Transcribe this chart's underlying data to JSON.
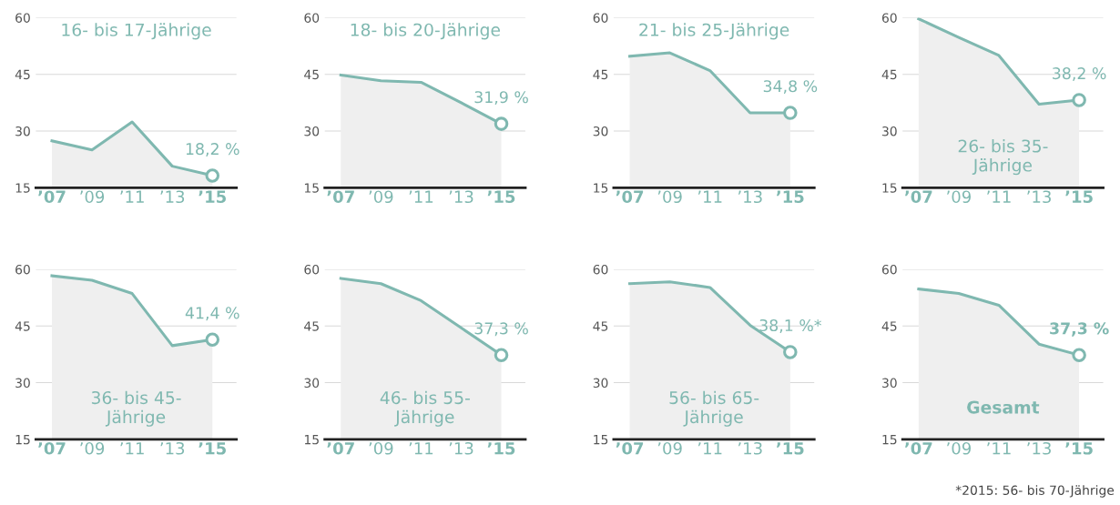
{
  "chart_data": [
    {
      "type": "area",
      "title": "16- bis 17-Jährige",
      "x": [
        2007,
        2009,
        2011,
        2013,
        2015
      ],
      "series": [
        {
          "color": "#7fb8b0",
          "values": [
            27.4,
            25,
            32.4,
            20.7,
            18.2
          ],
          "value_labels": [
            null,
            null,
            null,
            null,
            "18,2 %"
          ]
        }
      ],
      "xlim": [
        2006.2,
        2016.2
      ],
      "xticks": [
        {
          "value": 2007,
          "label": "’07"
        },
        {
          "value": 2009,
          "label": "’09"
        },
        {
          "value": 2011,
          "label": "’11"
        },
        {
          "value": 2013,
          "label": "’13"
        },
        {
          "value": 2015,
          "label": "’15"
        }
      ],
      "ylim": [
        15,
        60
      ],
      "yticks": [
        15,
        30,
        45,
        60
      ],
      "grid": "y"
    },
    {
      "type": "area",
      "title": "18- bis 20-Jährige",
      "x": [
        2007,
        2009,
        2011,
        2013,
        2015
      ],
      "series": [
        {
          "color": "#7fb8b0",
          "values": [
            44.8,
            43.3,
            42.9,
            37.5,
            31.9
          ],
          "value_labels": [
            null,
            null,
            null,
            null,
            "31,9 %"
          ]
        }
      ],
      "xlim": [
        2006.2,
        2016.2
      ],
      "xticks": [
        {
          "value": 2007,
          "label": "’07"
        },
        {
          "value": 2009,
          "label": "’09"
        },
        {
          "value": 2011,
          "label": "’11"
        },
        {
          "value": 2013,
          "label": "’13"
        },
        {
          "value": 2015,
          "label": "’15"
        }
      ],
      "ylim": [
        15,
        60
      ],
      "yticks": [
        15,
        30,
        45,
        60
      ],
      "grid": "y"
    },
    {
      "type": "area",
      "title": "21- bis 25-Jährige",
      "x": [
        2007,
        2009,
        2011,
        2013,
        2015
      ],
      "series": [
        {
          "color": "#7fb8b0",
          "values": [
            49.8,
            50.7,
            46,
            34.8,
            34.8
          ],
          "value_labels": [
            null,
            null,
            null,
            null,
            "34,8 %"
          ]
        }
      ],
      "xlim": [
        2006.2,
        2016.2
      ],
      "xticks": [
        {
          "value": 2007,
          "label": "’07"
        },
        {
          "value": 2009,
          "label": "’09"
        },
        {
          "value": 2011,
          "label": "’11"
        },
        {
          "value": 2013,
          "label": "’13"
        },
        {
          "value": 2015,
          "label": "’15"
        }
      ],
      "ylim": [
        15,
        60
      ],
      "yticks": [
        15,
        30,
        45,
        60
      ],
      "grid": "y"
    },
    {
      "type": "area",
      "title": "26- bis 35-\nJährige",
      "x": [
        2007,
        2009,
        2011,
        2013,
        2015
      ],
      "series": [
        {
          "color": "#7fb8b0",
          "values": [
            59.7,
            54.8,
            50,
            37.1,
            38.2
          ],
          "value_labels": [
            null,
            null,
            null,
            null,
            "38,2 %"
          ]
        }
      ],
      "xlim": [
        2006.2,
        2016.2
      ],
      "xticks": [
        {
          "value": 2007,
          "label": "’07"
        },
        {
          "value": 2009,
          "label": "’09"
        },
        {
          "value": 2011,
          "label": "’11"
        },
        {
          "value": 2013,
          "label": "’13"
        },
        {
          "value": 2015,
          "label": "’15"
        }
      ],
      "ylim": [
        15,
        60
      ],
      "yticks": [
        15,
        30,
        45,
        60
      ],
      "grid": "y"
    },
    {
      "type": "area",
      "title": "36- bis 45-\nJährige",
      "x": [
        2007,
        2009,
        2011,
        2013,
        2015
      ],
      "series": [
        {
          "color": "#7fb8b0",
          "values": [
            58.3,
            57.1,
            53.6,
            39.8,
            41.4
          ],
          "value_labels": [
            null,
            null,
            null,
            null,
            "41,4 %"
          ]
        }
      ],
      "xlim": [
        2006.2,
        2016.2
      ],
      "xticks": [
        {
          "value": 2007,
          "label": "’07"
        },
        {
          "value": 2009,
          "label": "’09"
        },
        {
          "value": 2011,
          "label": "’11"
        },
        {
          "value": 2013,
          "label": "’13"
        },
        {
          "value": 2015,
          "label": "’15"
        }
      ],
      "ylim": [
        15,
        60
      ],
      "yticks": [
        15,
        30,
        45,
        60
      ],
      "grid": "y"
    },
    {
      "type": "area",
      "title": "46- bis 55-\nJährige",
      "x": [
        2007,
        2009,
        2011,
        2013,
        2015
      ],
      "series": [
        {
          "color": "#7fb8b0",
          "values": [
            57.6,
            56.2,
            51.7,
            44.5,
            37.3
          ],
          "value_labels": [
            null,
            null,
            null,
            null,
            "37,3 %"
          ]
        }
      ],
      "xlim": [
        2006.2,
        2016.2
      ],
      "xticks": [
        {
          "value": 2007,
          "label": "’07"
        },
        {
          "value": 2009,
          "label": "’09"
        },
        {
          "value": 2011,
          "label": "’11"
        },
        {
          "value": 2013,
          "label": "’13"
        },
        {
          "value": 2015,
          "label": "’15"
        }
      ],
      "ylim": [
        15,
        60
      ],
      "yticks": [
        15,
        30,
        45,
        60
      ],
      "grid": "y"
    },
    {
      "type": "area",
      "title": "56- bis 65-\nJährige",
      "x": [
        2007,
        2009,
        2011,
        2013,
        2015
      ],
      "series": [
        {
          "color": "#7fb8b0",
          "values": [
            56.2,
            56.7,
            55.2,
            45.2,
            38.1
          ],
          "value_labels": [
            null,
            null,
            null,
            null,
            "38,1 %*"
          ]
        }
      ],
      "xlim": [
        2006.2,
        2016.2
      ],
      "xticks": [
        {
          "value": 2007,
          "label": "’07"
        },
        {
          "value": 2009,
          "label": "’09"
        },
        {
          "value": 2011,
          "label": "’11"
        },
        {
          "value": 2013,
          "label": "’13"
        },
        {
          "value": 2015,
          "label": "’15"
        }
      ],
      "ylim": [
        15,
        60
      ],
      "yticks": [
        15,
        30,
        45,
        60
      ],
      "grid": "y"
    },
    {
      "type": "area",
      "title": "Gesamt",
      "x": [
        2007,
        2009,
        2011,
        2013,
        2015
      ],
      "series": [
        {
          "color": "#7fb8b0",
          "values": [
            54.8,
            53.6,
            50.5,
            40.2,
            37.3
          ],
          "value_labels": [
            null,
            null,
            null,
            null,
            "37,3 %"
          ]
        }
      ],
      "xlim": [
        2006.2,
        2016.2
      ],
      "xticks": [
        {
          "value": 2007,
          "label": "’07"
        },
        {
          "value": 2009,
          "label": "’09"
        },
        {
          "value": 2011,
          "label": "’11"
        },
        {
          "value": 2013,
          "label": "’13"
        },
        {
          "value": 2015,
          "label": "’15"
        }
      ],
      "ylim": [
        15,
        60
      ],
      "yticks": [
        15,
        30,
        45,
        60
      ],
      "grid": "y",
      "annotations": [
        "*2015: 56- bis 70-Jährige"
      ]
    }
  ]
}
